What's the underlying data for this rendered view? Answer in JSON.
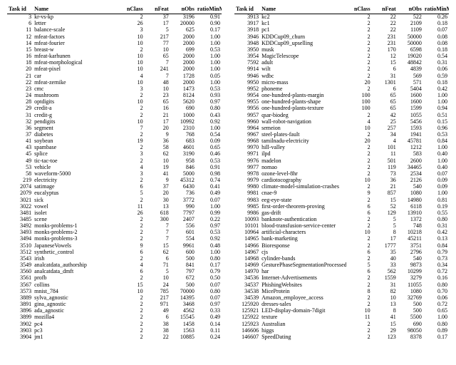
{
  "columns": [
    "Task id",
    "Name",
    "nClass",
    "nFeat",
    "nObs",
    "ratioMinMaj"
  ],
  "left": [
    [
      3,
      "kr-vs-kp",
      2,
      37,
      3196,
      0.91
    ],
    [
      6,
      "letter",
      26,
      17,
      20000,
      0.9
    ],
    [
      11,
      "balance-scale",
      3,
      5,
      625,
      0.17
    ],
    [
      12,
      "mfeat-factors",
      10,
      217,
      2000,
      1.0
    ],
    [
      14,
      "mfeat-fourier",
      10,
      77,
      2000,
      1.0
    ],
    [
      15,
      "breast-w",
      2,
      10,
      699,
      0.53
    ],
    [
      16,
      "mfeat-karhunen",
      10,
      65,
      2000,
      1.0
    ],
    [
      18,
      "mfeat-morphological",
      10,
      7,
      2000,
      1.0
    ],
    [
      20,
      "mfeat-pixel",
      10,
      241,
      2000,
      1.0
    ],
    [
      21,
      "car",
      4,
      7,
      1728,
      0.05
    ],
    [
      22,
      "mfeat-zernike",
      10,
      48,
      2000,
      1.0
    ],
    [
      23,
      "cmc",
      3,
      10,
      1473,
      0.53
    ],
    [
      24,
      "mushroom",
      2,
      23,
      8124,
      0.93
    ],
    [
      28,
      "optdigits",
      10,
      65,
      5620,
      0.97
    ],
    [
      29,
      "credit-a",
      2,
      16,
      690,
      0.8
    ],
    [
      31,
      "credit-g",
      2,
      21,
      1000,
      0.43
    ],
    [
      32,
      "pendigits",
      10,
      17,
      10992,
      0.92
    ],
    [
      36,
      "segment",
      7,
      20,
      2310,
      1.0
    ],
    [
      37,
      "diabetes",
      2,
      9,
      768,
      0.54
    ],
    [
      41,
      "soybean",
      19,
      36,
      683,
      0.09
    ],
    [
      43,
      "spambase",
      2,
      58,
      4601,
      0.65
    ],
    [
      45,
      "splice",
      3,
      62,
      3190,
      0.46
    ],
    [
      49,
      "tic-tac-toe",
      2,
      10,
      958,
      0.53
    ],
    [
      53,
      "vehicle",
      4,
      19,
      846,
      0.91
    ],
    [
      58,
      "waveform-5000",
      3,
      41,
      5000,
      0.98
    ],
    [
      219,
      "electricity",
      2,
      9,
      45312,
      0.74
    ],
    [
      2074,
      "satimage",
      6,
      37,
      6430,
      0.41
    ],
    [
      2079,
      "eucalyptus",
      5,
      20,
      736,
      0.49
    ],
    [
      3021,
      "sick",
      2,
      30,
      3772,
      0.07
    ],
    [
      3022,
      "vowel",
      11,
      13,
      990,
      1.0
    ],
    [
      3481,
      "isolet",
      26,
      618,
      7797,
      0.99
    ],
    [
      3485,
      "scene",
      2,
      300,
      2407,
      0.22
    ],
    [
      3492,
      "monks-problems-1",
      2,
      7,
      556,
      0.97
    ],
    [
      3493,
      "monks-problems-2",
      2,
      7,
      601,
      0.53
    ],
    [
      3494,
      "monks-problems-3",
      2,
      7,
      554,
      0.92
    ],
    [
      3510,
      "JapaneseVowels",
      9,
      15,
      9961,
      0.48
    ],
    [
      3512,
      "synthetic_control",
      6,
      62,
      "600",
      1.0
    ],
    [
      3543,
      "irish",
      2,
      6,
      500,
      0.8
    ],
    [
      3549,
      "analcatdata_authorship",
      4,
      71,
      841,
      0.17
    ],
    [
      3560,
      "analcatdata_dmft",
      6,
      5,
      797,
      0.79
    ],
    [
      3561,
      "profb",
      2,
      10,
      672,
      0.5
    ],
    [
      3567,
      "collins",
      15,
      24,
      500,
      0.07
    ],
    [
      3573,
      "mnist_784",
      10,
      785,
      70000,
      0.8
    ],
    [
      3889,
      "sylva_agnostic",
      2,
      217,
      14395,
      0.07
    ],
    [
      3891,
      "gina_agnostic",
      2,
      971,
      3468,
      0.97
    ],
    [
      3896,
      "ada_agnostic",
      2,
      49,
      4562,
      0.33
    ],
    [
      3899,
      "mozilla4",
      2,
      6,
      15545,
      0.49
    ],
    [
      3902,
      "pc4",
      2,
      38,
      1458,
      0.14
    ],
    [
      3903,
      "pc3",
      2,
      38,
      1563,
      0.11
    ],
    [
      3904,
      "jm1",
      2,
      22,
      10885,
      0.24
    ]
  ],
  "right": [
    [
      3913,
      "kc2",
      2,
      22,
      522,
      0.26
    ],
    [
      3917,
      "kc1",
      2,
      22,
      2109,
      0.18
    ],
    [
      3918,
      "pc1",
      2,
      22,
      1109,
      0.07
    ],
    [
      3946,
      "KDDCup09_churn",
      2,
      231,
      50000,
      0.08
    ],
    [
      3948,
      "KDDCup09_upselling",
      2,
      231,
      50000,
      0.08
    ],
    [
      3950,
      "musk",
      2,
      170,
      6598,
      0.18
    ],
    [
      3954,
      "MagicTelescope",
      2,
      12,
      19020,
      0.54
    ],
    [
      7592,
      "adult",
      2,
      15,
      48842,
      0.31
    ],
    [
      9914,
      "wilt",
      2,
      6,
      4839,
      0.06
    ],
    [
      9946,
      "wdbc",
      2,
      31,
      569,
      0.59
    ],
    [
      9950,
      "micro-mass",
      20,
      1301,
      571,
      0.18
    ],
    [
      9952,
      "phoneme",
      2,
      6,
      5404,
      0.42
    ],
    [
      9954,
      "one-hundred-plants-margin",
      100,
      65,
      1600,
      1.0
    ],
    [
      9955,
      "one-hundred-plants-shape",
      100,
      65,
      1600,
      1.0
    ],
    [
      9956,
      "one-hundred-plants-texture",
      100,
      65,
      1599,
      0.94
    ],
    [
      9957,
      "qsar-biodeg",
      2,
      42,
      1055,
      0.51
    ],
    [
      9960,
      "wall-robot-navigation",
      4,
      25,
      5456,
      0.15
    ],
    [
      9964,
      "semeion",
      10,
      257,
      1593,
      0.96
    ],
    [
      9967,
      "steel-plates-fault",
      2,
      34,
      1941,
      0.53
    ],
    [
      9968,
      "tamilnadu-electricity",
      20,
      4,
      45781,
      0.84
    ],
    [
      9970,
      "hill-valley",
      2,
      101,
      1212,
      1.0
    ],
    [
      9971,
      "ilpd",
      2,
      11,
      583,
      0.4
    ],
    [
      9976,
      "madelon",
      2,
      501,
      2600,
      1.0
    ],
    [
      9977,
      "nomao",
      2,
      119,
      34465,
      0.4
    ],
    [
      9978,
      "ozone-level-8hr",
      2,
      73,
      2534,
      0.07
    ],
    [
      9979,
      "cardiotocography",
      10,
      36,
      2126,
      0.09
    ],
    [
      9980,
      "climate-model-simulation-crashes",
      2,
      21,
      540,
      0.09
    ],
    [
      9981,
      "cnae-9",
      9,
      857,
      1080,
      1.0
    ],
    [
      9983,
      "eeg-eye-state",
      2,
      15,
      14980,
      0.81
    ],
    [
      9985,
      "first-order-theorem-proving",
      6,
      52,
      6118,
      0.19
    ],
    [
      9986,
      "gas-drift",
      6,
      129,
      13910,
      0.55
    ],
    [
      10093,
      "banknote-authentication",
      2,
      5,
      1372,
      0.8
    ],
    [
      10101,
      "blood-transfusion-service-center",
      2,
      5,
      748,
      0.31
    ],
    [
      10964,
      "artificial-characters",
      10,
      8,
      10218,
      0.42
    ],
    [
      14965,
      "bank-marketing",
      2,
      17,
      45211,
      0.13
    ],
    [
      14966,
      "Bioresponse",
      2,
      1777,
      3751,
      0.84
    ],
    [
      14967,
      "cjs",
      6,
      35,
      2796,
      0.79
    ],
    [
      14968,
      "cylinder-bands",
      2,
      40,
      540,
      0.73
    ],
    [
      14969,
      "GesturePhaseSegmentationProcessed",
      5,
      33,
      9873,
      0.34
    ],
    [
      14970,
      "har",
      6,
      562,
      10299,
      0.72
    ],
    [
      34536,
      "Internet-Advertisements",
      2,
      1559,
      3279,
      0.16
    ],
    [
      34537,
      "PhishingWebsites",
      2,
      31,
      11055,
      0.8
    ],
    [
      34538,
      "MiceProtein",
      8,
      82,
      1080,
      0.7
    ],
    [
      34539,
      "Amazon_employee_access",
      2,
      10,
      32769,
      0.06
    ],
    [
      125920,
      "dresses-sales",
      2,
      13,
      500,
      0.72
    ],
    [
      125921,
      "LED-display-domain-7digit",
      10,
      8,
      500,
      0.65
    ],
    [
      125922,
      "texture",
      11,
      41,
      5500,
      1.0
    ],
    [
      125923,
      "Australian",
      2,
      15,
      690,
      0.8
    ],
    [
      146606,
      "higgs",
      2,
      29,
      98050,
      0.89
    ],
    [
      146607,
      "SpeedDating",
      2,
      123,
      8378,
      0.17
    ]
  ]
}
